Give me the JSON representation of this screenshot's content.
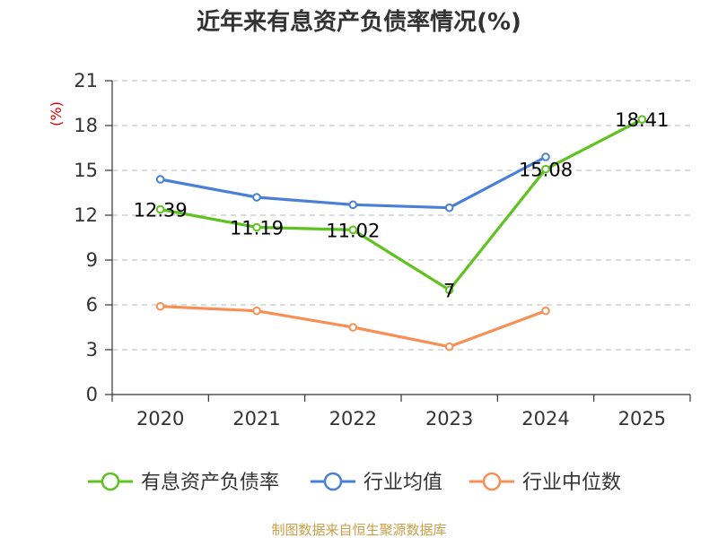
{
  "chart_data": {
    "type": "line",
    "title": "近年来有息资产负债率情况(%)",
    "ylabel": "(%)",
    "xlabel": "",
    "categories": [
      "2020",
      "2021",
      "2022",
      "2023",
      "2024",
      "2025"
    ],
    "ylim": [
      0,
      21
    ],
    "yticks": [
      0,
      3,
      6,
      9,
      12,
      15,
      18,
      21
    ],
    "grid": "horizontal dashed",
    "legend_position": "bottom",
    "series": [
      {
        "name": "有息资产负债率",
        "color": "#5ec320",
        "values": [
          12.39,
          11.19,
          11.02,
          7,
          15.08,
          18.41
        ],
        "labels": [
          "12.39",
          "11.19",
          "11.02",
          "7",
          "15.08",
          "18.41"
        ]
      },
      {
        "name": "行业均值",
        "color": "#4a7fd8",
        "values": [
          14.4,
          13.2,
          12.7,
          12.5,
          15.9,
          null
        ]
      },
      {
        "name": "行业中位数",
        "color": "#f88f55",
        "values": [
          5.9,
          5.6,
          4.5,
          3.2,
          5.6,
          null
        ]
      }
    ]
  },
  "footer": {
    "source": "制图数据来自恒生聚源数据库"
  }
}
